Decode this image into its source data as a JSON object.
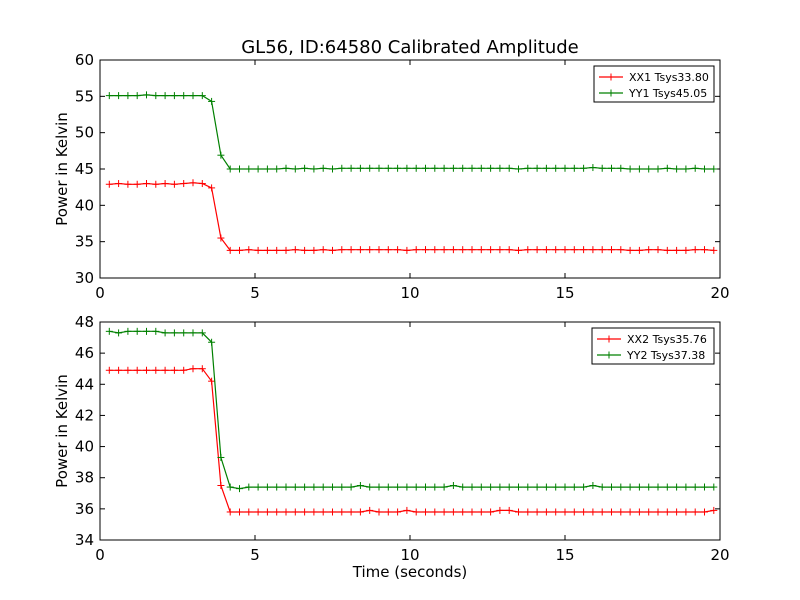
{
  "figure": {
    "title": "GL56, ID:64580 Calibrated Amplitude"
  },
  "chart_data": [
    {
      "type": "line",
      "title": "GL56, ID:64580 Calibrated Amplitude",
      "xlabel": "",
      "ylabel": "Power in Kelvin",
      "xlim": [
        0,
        20
      ],
      "ylim": [
        30,
        60
      ],
      "xticks": [
        "0",
        "5",
        "10",
        "15",
        "20"
      ],
      "yticks": [
        "30",
        "35",
        "40",
        "45",
        "50",
        "55",
        "60"
      ],
      "xtick_values": [
        0,
        5,
        10,
        15,
        20
      ],
      "ytick_values": [
        30,
        35,
        40,
        45,
        50,
        55,
        60
      ],
      "grid": false,
      "legend_position": "top-right",
      "x": [
        0.3,
        0.6,
        0.9,
        1.2,
        1.5,
        1.8,
        2.1,
        2.4,
        2.7,
        3.0,
        3.3,
        3.6,
        3.9,
        4.2,
        4.5,
        4.8,
        5.1,
        5.4,
        5.7,
        6.0,
        6.3,
        6.6,
        6.9,
        7.2,
        7.5,
        7.8,
        8.1,
        8.4,
        8.7,
        9.0,
        9.3,
        9.6,
        9.9,
        10.2,
        10.5,
        10.8,
        11.1,
        11.4,
        11.7,
        12.0,
        12.3,
        12.6,
        12.9,
        13.2,
        13.5,
        13.8,
        14.1,
        14.4,
        14.7,
        15.0,
        15.3,
        15.6,
        15.9,
        16.2,
        16.5,
        16.8,
        17.1,
        17.4,
        17.7,
        18.0,
        18.3,
        18.6,
        18.9,
        19.2,
        19.5,
        19.8
      ],
      "series": [
        {
          "name": "XX1 Tsys33.80",
          "color": "#ff0000",
          "values": [
            42.9,
            43.0,
            42.9,
            42.9,
            43.0,
            42.9,
            43.0,
            42.9,
            43.0,
            43.1,
            43.0,
            42.4,
            35.5,
            33.8,
            33.8,
            33.9,
            33.8,
            33.8,
            33.8,
            33.8,
            33.9,
            33.8,
            33.8,
            33.9,
            33.8,
            33.9,
            33.9,
            33.9,
            33.9,
            33.9,
            33.9,
            33.9,
            33.8,
            33.9,
            33.9,
            33.9,
            33.9,
            33.9,
            33.9,
            33.9,
            33.9,
            33.9,
            33.9,
            33.9,
            33.8,
            33.9,
            33.9,
            33.9,
            33.9,
            33.9,
            33.9,
            33.9,
            33.9,
            33.9,
            33.9,
            33.9,
            33.8,
            33.8,
            33.9,
            33.9,
            33.8,
            33.8,
            33.8,
            33.9,
            33.9,
            33.8
          ]
        },
        {
          "name": "YY1 Tsys45.05",
          "color": "#008000",
          "values": [
            55.1,
            55.1,
            55.1,
            55.1,
            55.2,
            55.1,
            55.1,
            55.1,
            55.1,
            55.1,
            55.1,
            54.3,
            46.9,
            45.0,
            45.0,
            45.0,
            45.0,
            45.0,
            45.0,
            45.1,
            45.0,
            45.1,
            45.0,
            45.1,
            45.0,
            45.1,
            45.1,
            45.1,
            45.1,
            45.1,
            45.1,
            45.1,
            45.1,
            45.1,
            45.1,
            45.1,
            45.1,
            45.1,
            45.1,
            45.1,
            45.1,
            45.1,
            45.1,
            45.1,
            45.0,
            45.1,
            45.1,
            45.1,
            45.1,
            45.1,
            45.1,
            45.1,
            45.2,
            45.1,
            45.1,
            45.1,
            45.0,
            45.0,
            45.0,
            45.0,
            45.1,
            45.0,
            45.0,
            45.1,
            45.0,
            45.0
          ]
        }
      ]
    },
    {
      "type": "line",
      "title": "",
      "xlabel": "Time (seconds)",
      "ylabel": "Power in Kelvin",
      "xlim": [
        0,
        20
      ],
      "ylim": [
        34,
        48
      ],
      "xticks": [
        "0",
        "5",
        "10",
        "15",
        "20"
      ],
      "yticks": [
        "34",
        "36",
        "38",
        "40",
        "42",
        "44",
        "46",
        "48"
      ],
      "xtick_values": [
        0,
        5,
        10,
        15,
        20
      ],
      "ytick_values": [
        34,
        36,
        38,
        40,
        42,
        44,
        46,
        48
      ],
      "grid": false,
      "legend_position": "top-right",
      "x": [
        0.3,
        0.6,
        0.9,
        1.2,
        1.5,
        1.8,
        2.1,
        2.4,
        2.7,
        3.0,
        3.3,
        3.6,
        3.9,
        4.2,
        4.5,
        4.8,
        5.1,
        5.4,
        5.7,
        6.0,
        6.3,
        6.6,
        6.9,
        7.2,
        7.5,
        7.8,
        8.1,
        8.4,
        8.7,
        9.0,
        9.3,
        9.6,
        9.9,
        10.2,
        10.5,
        10.8,
        11.1,
        11.4,
        11.7,
        12.0,
        12.3,
        12.6,
        12.9,
        13.2,
        13.5,
        13.8,
        14.1,
        14.4,
        14.7,
        15.0,
        15.3,
        15.6,
        15.9,
        16.2,
        16.5,
        16.8,
        17.1,
        17.4,
        17.7,
        18.0,
        18.3,
        18.6,
        18.9,
        19.2,
        19.5,
        19.8
      ],
      "series": [
        {
          "name": "XX2 Tsys35.76",
          "color": "#ff0000",
          "values": [
            44.9,
            44.9,
            44.9,
            44.9,
            44.9,
            44.9,
            44.9,
            44.9,
            44.9,
            45.0,
            45.0,
            44.2,
            37.5,
            35.8,
            35.8,
            35.8,
            35.8,
            35.8,
            35.8,
            35.8,
            35.8,
            35.8,
            35.8,
            35.8,
            35.8,
            35.8,
            35.8,
            35.8,
            35.9,
            35.8,
            35.8,
            35.8,
            35.9,
            35.8,
            35.8,
            35.8,
            35.8,
            35.8,
            35.8,
            35.8,
            35.8,
            35.8,
            35.9,
            35.9,
            35.8,
            35.8,
            35.8,
            35.8,
            35.8,
            35.8,
            35.8,
            35.8,
            35.8,
            35.8,
            35.8,
            35.8,
            35.8,
            35.8,
            35.8,
            35.8,
            35.8,
            35.8,
            35.8,
            35.8,
            35.8,
            35.9
          ]
        },
        {
          "name": "YY2 Tsys37.38",
          "color": "#008000",
          "values": [
            47.4,
            47.3,
            47.4,
            47.4,
            47.4,
            47.4,
            47.3,
            47.3,
            47.3,
            47.3,
            47.3,
            46.7,
            39.3,
            37.4,
            37.3,
            37.4,
            37.4,
            37.4,
            37.4,
            37.4,
            37.4,
            37.4,
            37.4,
            37.4,
            37.4,
            37.4,
            37.4,
            37.5,
            37.4,
            37.4,
            37.4,
            37.4,
            37.4,
            37.4,
            37.4,
            37.4,
            37.4,
            37.5,
            37.4,
            37.4,
            37.4,
            37.4,
            37.4,
            37.4,
            37.4,
            37.4,
            37.4,
            37.4,
            37.4,
            37.4,
            37.4,
            37.4,
            37.5,
            37.4,
            37.4,
            37.4,
            37.4,
            37.4,
            37.4,
            37.4,
            37.4,
            37.4,
            37.4,
            37.4,
            37.4,
            37.4
          ]
        }
      ]
    }
  ]
}
